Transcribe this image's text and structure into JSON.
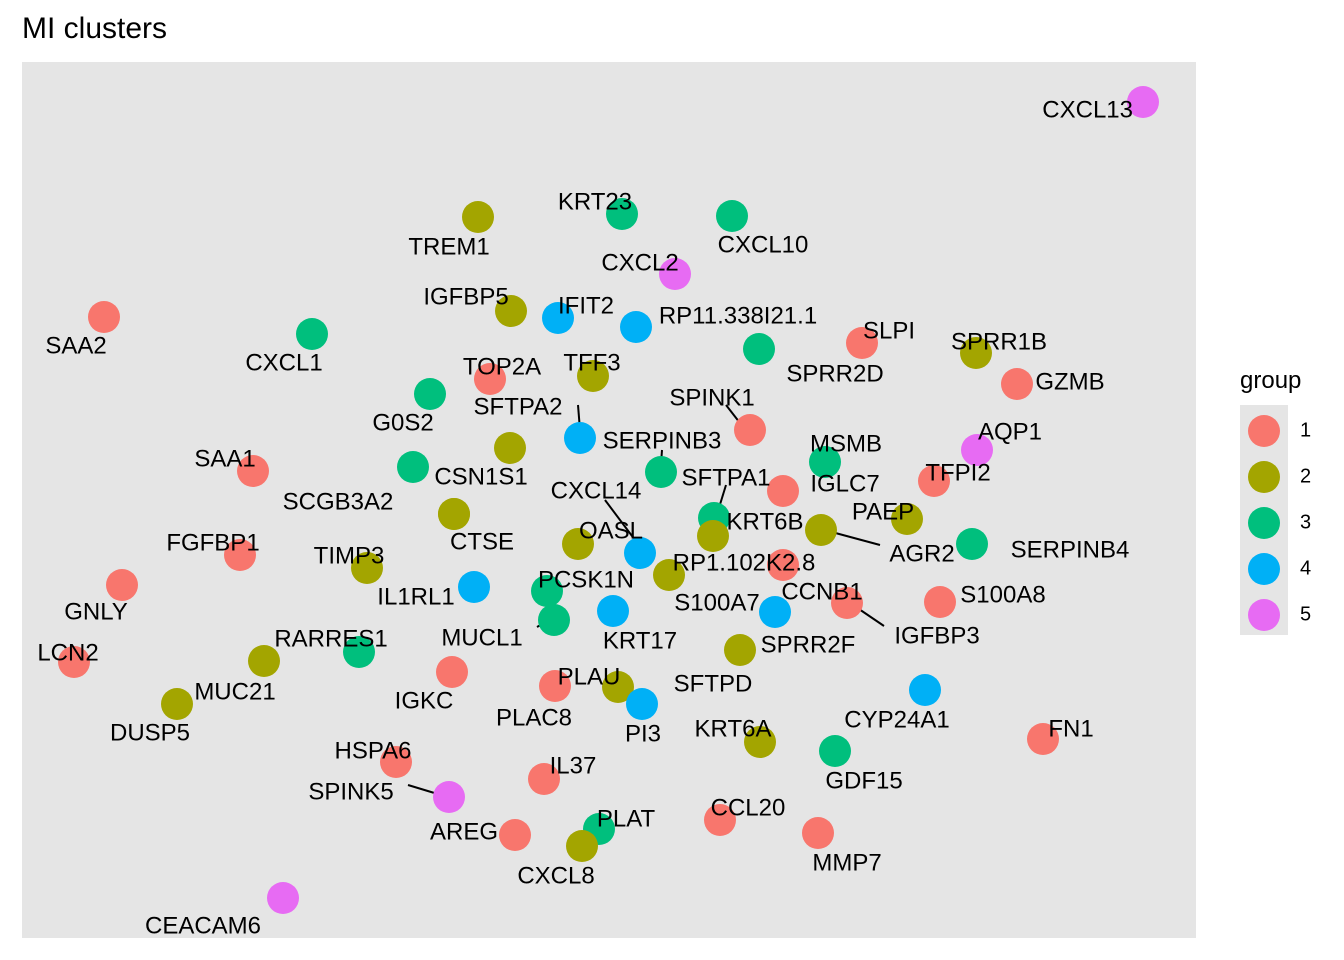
{
  "chart_data": {
    "type": "scatter",
    "title": "MI clusters",
    "xlabel": "",
    "ylabel": "",
    "grid": false,
    "legend_position": "right",
    "legend": {
      "title": "group",
      "entries": [
        {
          "name": "1",
          "color": "#F8766D"
        },
        {
          "name": "2",
          "color": "#A3A500"
        },
        {
          "name": "3",
          "color": "#00BF7D"
        },
        {
          "name": "4",
          "color": "#00B0F6"
        },
        {
          "name": "5",
          "color": "#E76BF3"
        }
      ]
    },
    "panel_background": "#E5E5E5",
    "points": [
      {
        "label": "CXCL13",
        "group": "5"
      },
      {
        "label": "KRT23",
        "group": "3"
      },
      {
        "label": "CXCL10",
        "group": "3"
      },
      {
        "label": "TREM1",
        "group": "2"
      },
      {
        "label": "CXCL2",
        "group": "5"
      },
      {
        "label": "SAA2",
        "group": "1"
      },
      {
        "label": "IGFBP5",
        "group": "2"
      },
      {
        "label": "IFIT2",
        "group": "4"
      },
      {
        "label": "RP11.338I21.1",
        "group": "4"
      },
      {
        "label": "CXCL1",
        "group": "3"
      },
      {
        "label": "SLPI",
        "group": "1"
      },
      {
        "label": "SPRR1B",
        "group": "2"
      },
      {
        "label": "SPRR2D",
        "group": "3"
      },
      {
        "label": "TOP2A",
        "group": "1"
      },
      {
        "label": "TFF3",
        "group": "2"
      },
      {
        "label": "GZMB",
        "group": "1"
      },
      {
        "label": "G0S2",
        "group": "3"
      },
      {
        "label": "SPINK1",
        "group": "1"
      },
      {
        "label": "SFTPA2",
        "group": "4"
      },
      {
        "label": "SERPINB3",
        "group": "2"
      },
      {
        "label": "AQP1",
        "group": "5"
      },
      {
        "label": "MSMB",
        "group": "3"
      },
      {
        "label": "SAA1",
        "group": "1"
      },
      {
        "label": "CSN1S1",
        "group": "3"
      },
      {
        "label": "SFTPA1",
        "group": "3"
      },
      {
        "label": "TFPI2",
        "group": "1"
      },
      {
        "label": "IGLC7",
        "group": "1"
      },
      {
        "label": "SCGB3A2",
        "group": "2"
      },
      {
        "label": "CXCL14",
        "group": "4"
      },
      {
        "label": "KRT6B",
        "group": "3"
      },
      {
        "label": "PAEP",
        "group": "2"
      },
      {
        "label": "CTSE",
        "group": "2"
      },
      {
        "label": "FGFBP1",
        "group": "1"
      },
      {
        "label": "OASL",
        "group": "2"
      },
      {
        "label": "AGR2",
        "group": "2"
      },
      {
        "label": "SERPINB4",
        "group": "3"
      },
      {
        "label": "TIMP3",
        "group": "2"
      },
      {
        "label": "RP1.102K2.8",
        "group": "2"
      },
      {
        "label": "GNLY",
        "group": "1"
      },
      {
        "label": "IL1RL1",
        "group": "4"
      },
      {
        "label": "PCSK1N",
        "group": "3"
      },
      {
        "label": "CCNB1",
        "group": "1"
      },
      {
        "label": "S100A8",
        "group": "1"
      },
      {
        "label": "S100A7",
        "group": "2"
      },
      {
        "label": "IGFBP3",
        "group": "1"
      },
      {
        "label": "MUCL1",
        "group": "3"
      },
      {
        "label": "KRT17",
        "group": "4"
      },
      {
        "label": "SPRR2F",
        "group": "4"
      },
      {
        "label": "LCN2",
        "group": "1"
      },
      {
        "label": "RARRES1",
        "group": "3"
      },
      {
        "label": "MUC21",
        "group": "2"
      },
      {
        "label": "IGKC",
        "group": "1"
      },
      {
        "label": "PLAU",
        "group": "2"
      },
      {
        "label": "SFTPD",
        "group": "2"
      },
      {
        "label": "DUSP5",
        "group": "2"
      },
      {
        "label": "PLAC8",
        "group": "1"
      },
      {
        "label": "PI3",
        "group": "4"
      },
      {
        "label": "CYP24A1",
        "group": "4"
      },
      {
        "label": "KRT6A",
        "group": "2"
      },
      {
        "label": "FN1",
        "group": "1"
      },
      {
        "label": "HSPA6",
        "group": "1"
      },
      {
        "label": "IL37",
        "group": "1"
      },
      {
        "label": "GDF15",
        "group": "3"
      },
      {
        "label": "SPINK5",
        "group": "5"
      },
      {
        "label": "AREG",
        "group": "1"
      },
      {
        "label": "PLAT",
        "group": "3"
      },
      {
        "label": "CCL20",
        "group": "1"
      },
      {
        "label": "MMP7",
        "group": "1"
      },
      {
        "label": "CXCL8",
        "group": "2"
      },
      {
        "label": "CEACAM6",
        "group": "5"
      }
    ]
  }
}
